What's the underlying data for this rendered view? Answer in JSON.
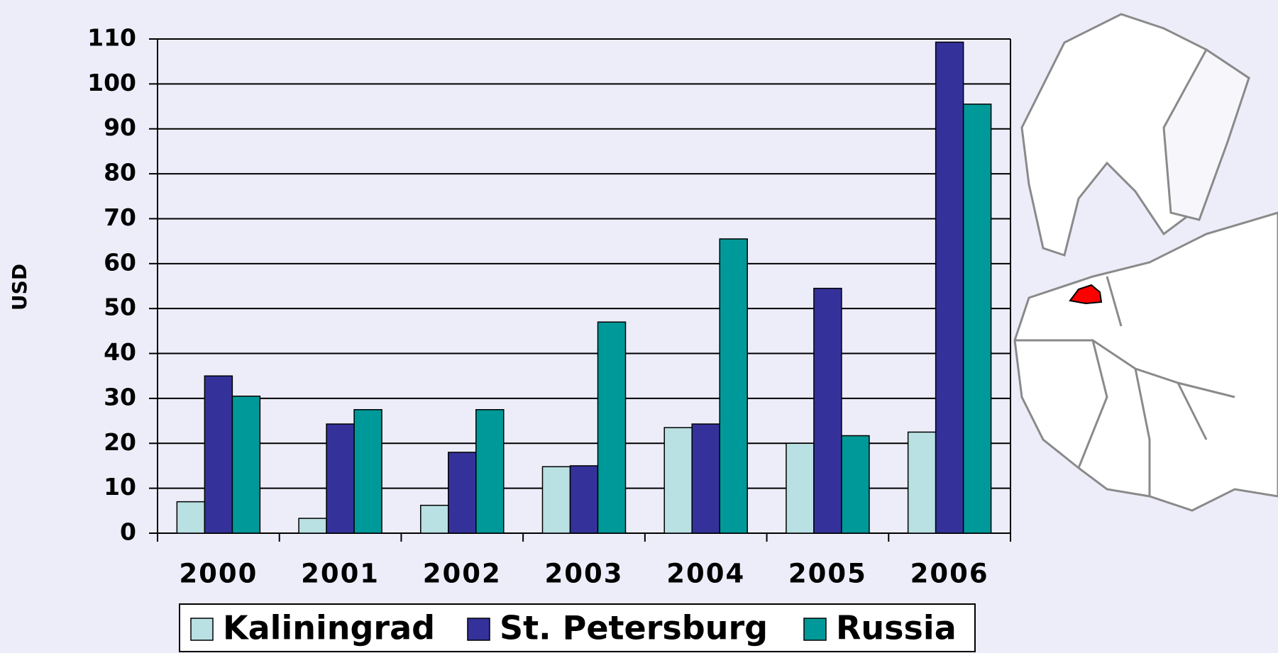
{
  "chart_data": {
    "type": "bar",
    "y_label": "USD",
    "categories": [
      "2000",
      "2001",
      "2002",
      "2003",
      "2004",
      "2005",
      "2006"
    ],
    "series": [
      {
        "name": "Kaliningrad",
        "color": "#b9e0e2",
        "values": [
          7,
          3.3,
          6.2,
          14.8,
          23.5,
          20,
          22.5
        ]
      },
      {
        "name": "St. Petersburg",
        "color": "#34329a",
        "values": [
          35,
          24.3,
          18,
          15,
          24.3,
          54.5,
          109.3
        ]
      },
      {
        "name": "Russia",
        "color": "#009999",
        "values": [
          30.5,
          27.5,
          27.5,
          47,
          65.5,
          21.7,
          95.5
        ]
      }
    ],
    "ylim": [
      0,
      110
    ],
    "yticks": [
      0,
      10,
      20,
      30,
      40,
      50,
      60,
      70,
      80,
      90,
      100,
      110
    ],
    "grid": true
  }
}
